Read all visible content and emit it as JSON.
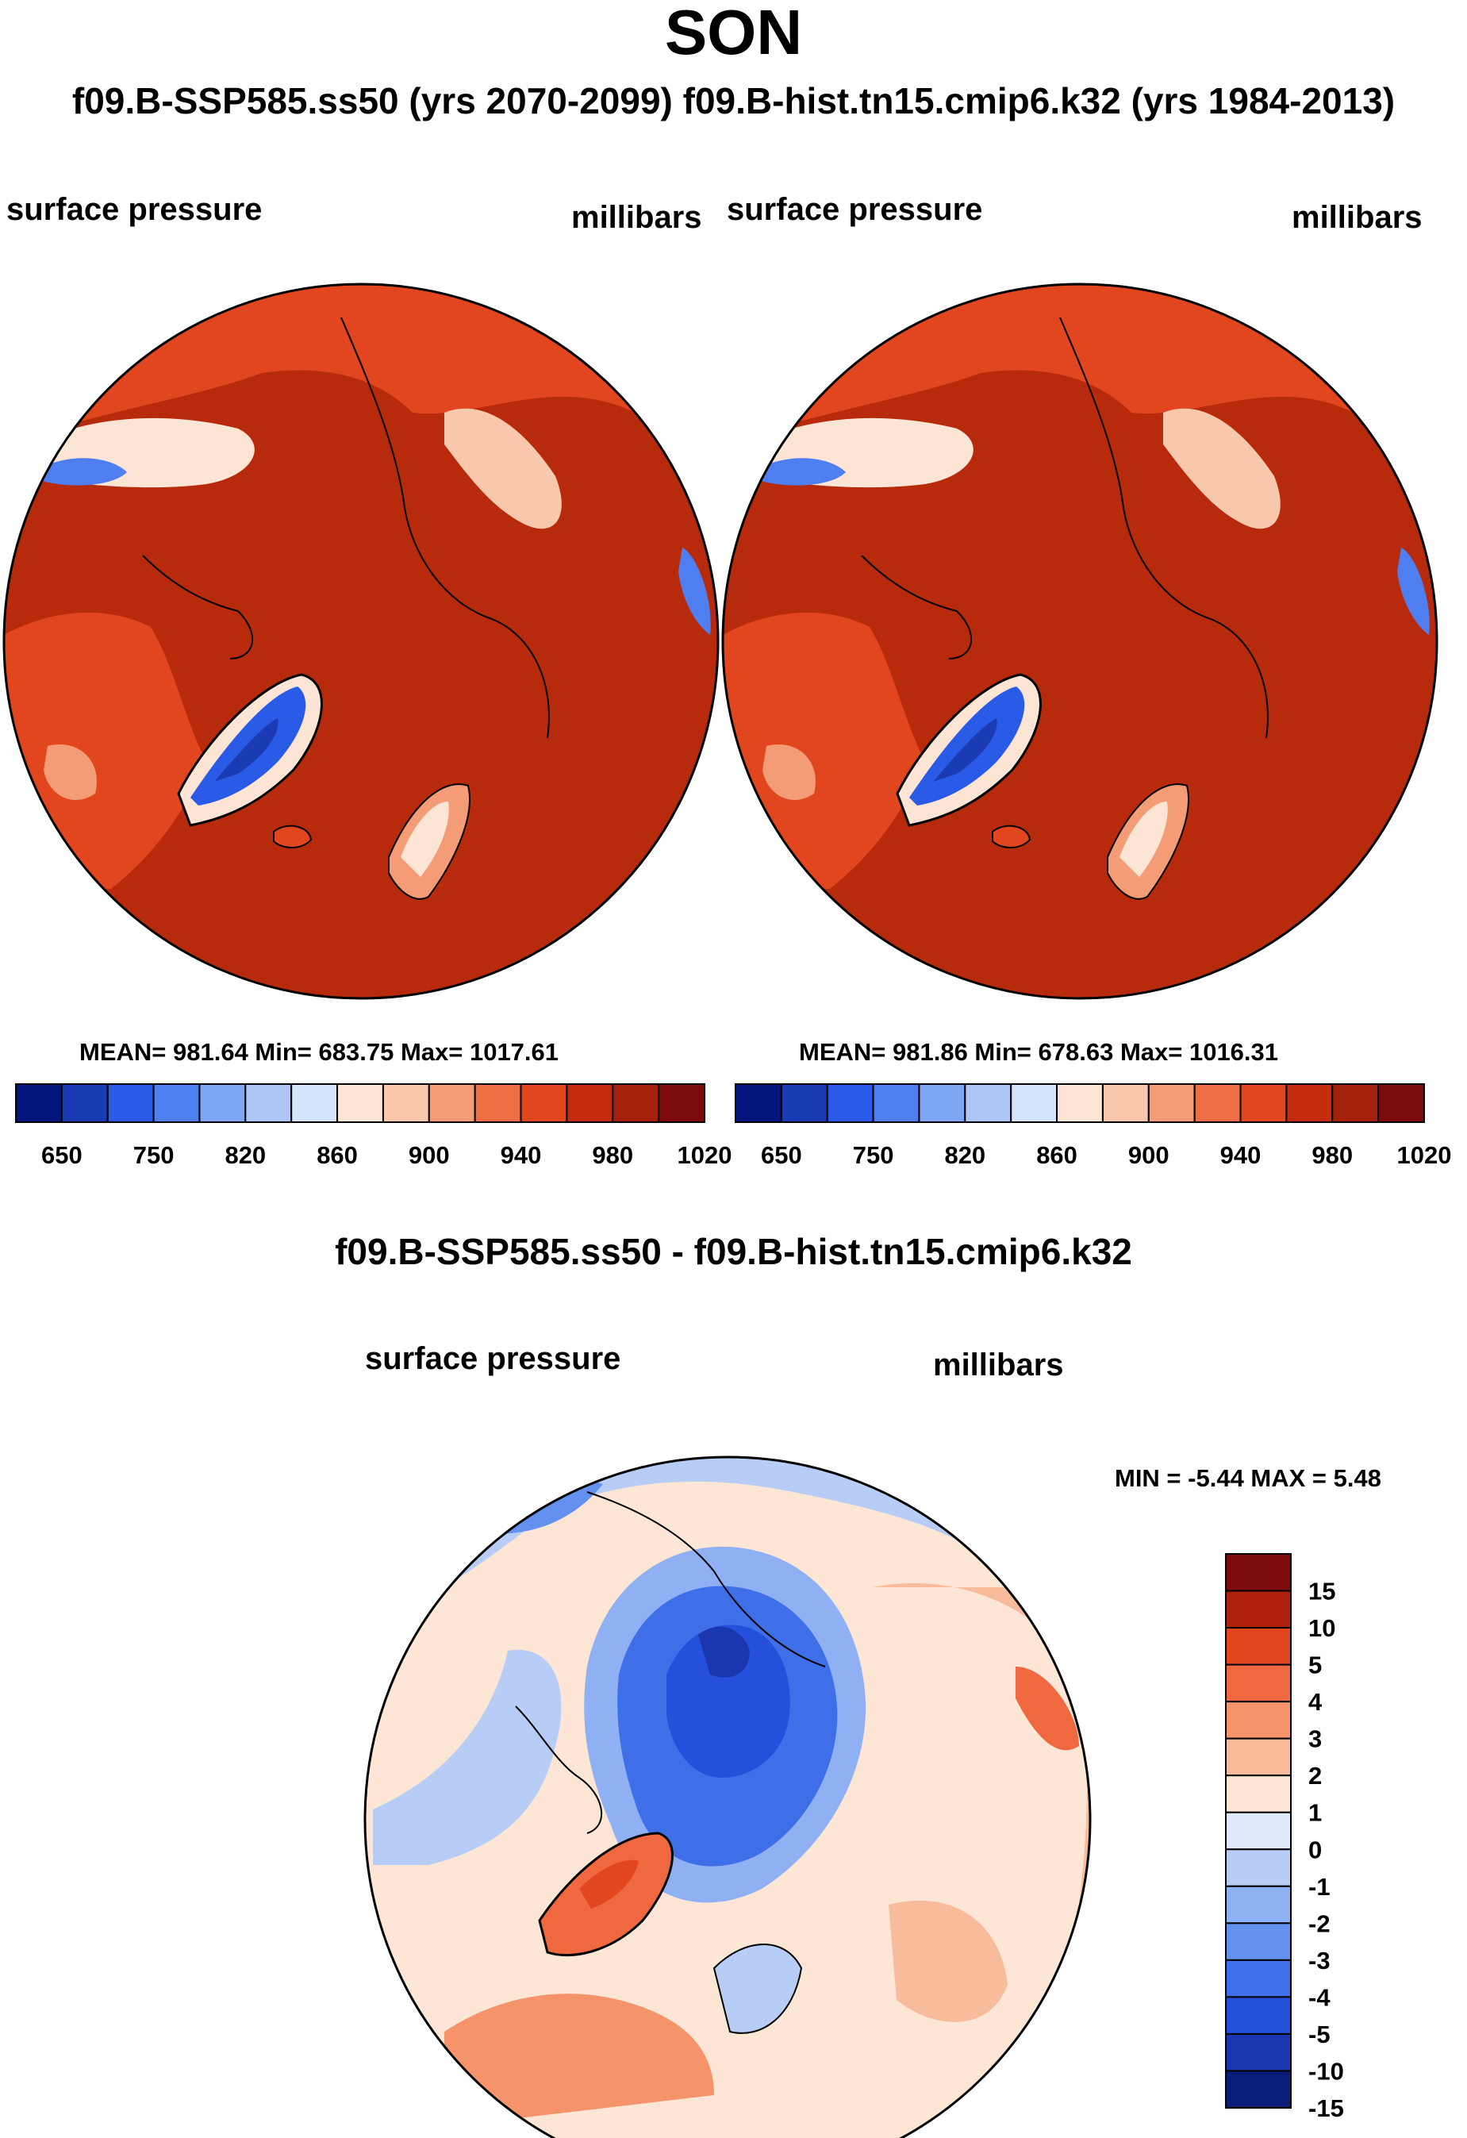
{
  "title": "SON",
  "subtitle": "f09.B-SSP585.ss50 (yrs 2070-2099)  f09.B-hist.tn15.cmip6.k32 (yrs 1984-2013)",
  "colors": {
    "ocean_warm": "#b72b0c",
    "land_light": "#f6b795",
    "ice_blue": "#1f48d8",
    "coast": "#000000"
  },
  "panel_left": {
    "variable": "surface pressure",
    "units": "millibars",
    "stats": "MEAN= 981.64  Min= 683.75  Max= 1017.61"
  },
  "panel_right": {
    "variable": "surface pressure",
    "units": "millibars",
    "stats": "MEAN= 981.86  Min= 678.63  Max= 1016.31"
  },
  "colorbar_top": {
    "colors": [
      "#04167e",
      "#1b3bb5",
      "#2a5be6",
      "#4f7ef0",
      "#7ea6f2",
      "#adc6f6",
      "#d6e4fb",
      "#fde5d6",
      "#f8c7ac",
      "#f49c75",
      "#ee6e45",
      "#e2461e",
      "#c32d0e",
      "#a4210c",
      "#7e0b0b"
    ],
    "labels": [
      "650",
      "750",
      "820",
      "860",
      "900",
      "940",
      "980",
      "1020"
    ]
  },
  "diff": {
    "title": "f09.B-SSP585.ss50 - f09.B-hist.tn15.cmip6.k32",
    "variable": "surface pressure",
    "units": "millibars",
    "minmax": "MIN =  -5.44 MAX =   5.48"
  },
  "colorbar_diff": {
    "colors": [
      "#7e0b0b",
      "#b01e0e",
      "#e2461e",
      "#f06840",
      "#f5936b",
      "#f8bb9c",
      "#fde6d6",
      "#dfeafb",
      "#b7cdf5",
      "#8fb1f3",
      "#6490ef",
      "#3e6ee8",
      "#2450dc",
      "#1a37b0",
      "#0a1d7a"
    ],
    "labels": [
      "15",
      "10",
      "5",
      "4",
      "3",
      "2",
      "1",
      "0",
      "-1",
      "-2",
      "-3",
      "-4",
      "-5",
      "-10",
      "-15"
    ]
  },
  "chart_data": [
    {
      "type": "heatmap",
      "title": "SON",
      "subtitle": "f09.B-SSP585.ss50 (yrs 2070-2099)",
      "field": "surface pressure",
      "units": "millibars",
      "projection": "north polar stereographic",
      "mean": 981.64,
      "min": 683.75,
      "max": 1017.61,
      "colorbar_levels": [
        650,
        750,
        820,
        860,
        900,
        940,
        980,
        1020
      ]
    },
    {
      "type": "heatmap",
      "subtitle": "f09.B-hist.tn15.cmip6.k32 (yrs 1984-2013)",
      "field": "surface pressure",
      "units": "millibars",
      "projection": "north polar stereographic",
      "mean": 981.86,
      "min": 678.63,
      "max": 1016.31,
      "colorbar_levels": [
        650,
        750,
        820,
        860,
        900,
        940,
        980,
        1020
      ]
    },
    {
      "type": "heatmap",
      "title": "f09.B-SSP585.ss50 - f09.B-hist.tn15.cmip6.k32",
      "field": "surface pressure",
      "units": "millibars",
      "projection": "north polar stereographic",
      "min": -5.44,
      "max": 5.48,
      "colorbar_levels": [
        15,
        10,
        5,
        4,
        3,
        2,
        1,
        0,
        -1,
        -2,
        -3,
        -4,
        -5,
        -10,
        -15
      ]
    }
  ]
}
